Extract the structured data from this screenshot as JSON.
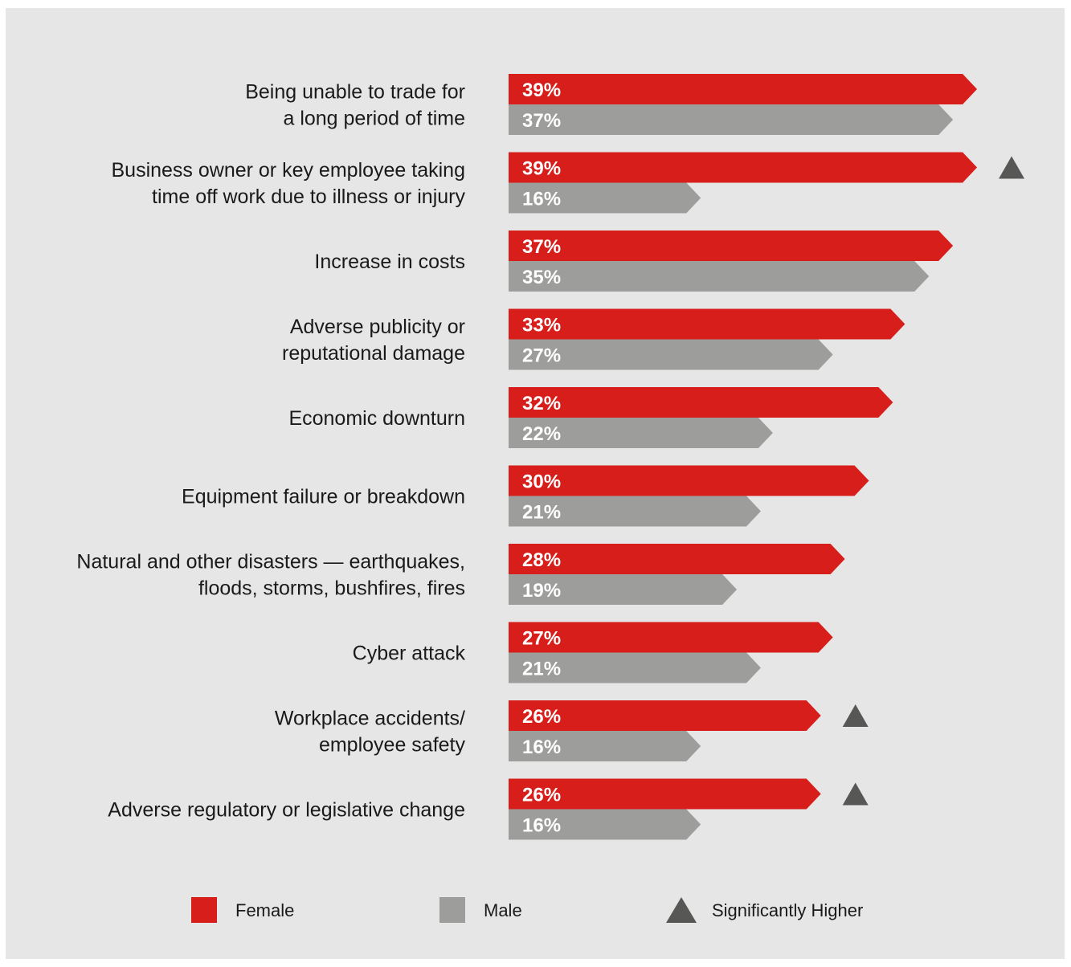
{
  "chart_data": {
    "type": "bar",
    "orientation": "horizontal",
    "categories": [
      [
        "Being unable to trade for",
        "a long period of time"
      ],
      [
        "Business owner or key employee taking",
        "time off work due to illness or injury"
      ],
      [
        "Increase in costs"
      ],
      [
        "Adverse publicity or",
        "reputational damage"
      ],
      [
        "Economic downturn"
      ],
      [
        "Equipment failure or breakdown"
      ],
      [
        "Natural and other disasters — earthquakes,",
        "floods, storms, bushfires, fires"
      ],
      [
        "Cyber attack"
      ],
      [
        "Workplace accidents/",
        "employee safety"
      ],
      [
        "Adverse regulatory or legislative change"
      ]
    ],
    "series": [
      {
        "name": "Female",
        "color": "#d71e1a",
        "values": [
          39,
          39,
          37,
          33,
          32,
          30,
          28,
          27,
          26,
          26
        ],
        "labels": [
          "39%",
          "39%",
          "37%",
          "33%",
          "32%",
          "30%",
          "28%",
          "27%",
          "26%",
          "26%"
        ]
      },
      {
        "name": "Male",
        "color": "#9d9d9c",
        "values": [
          37,
          16,
          35,
          27,
          22,
          21,
          19,
          21,
          16,
          16
        ],
        "labels": [
          "37%",
          "16%",
          "35%",
          "27%",
          "22%",
          "21%",
          "19%",
          "21%",
          "16%",
          "16%"
        ]
      }
    ],
    "significantly_higher": [
      false,
      true,
      false,
      false,
      false,
      false,
      false,
      false,
      true,
      true
    ],
    "marker_label": "Significantly Higher",
    "marker_color": "#575756",
    "xlim": [
      0,
      39
    ],
    "grid": false,
    "legend_position": "bottom"
  }
}
